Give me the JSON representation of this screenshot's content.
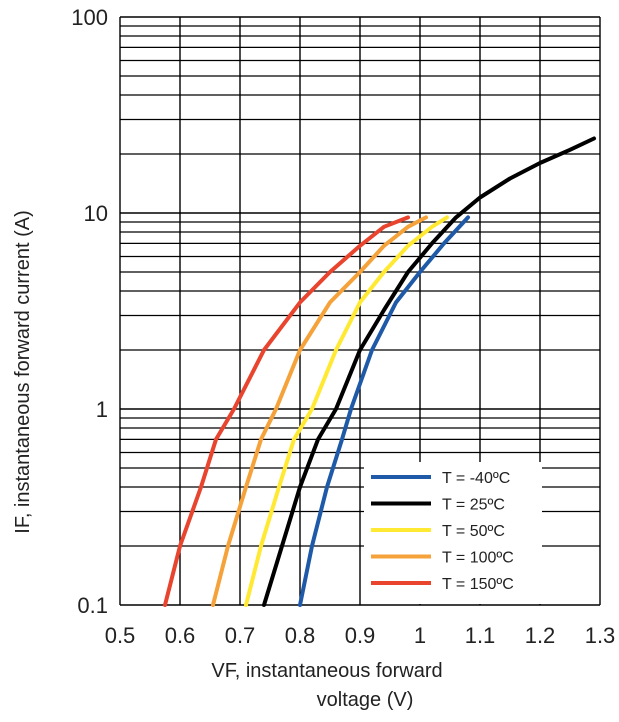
{
  "chart_data": {
    "type": "line",
    "title": "",
    "xlabel_line1": "VF, instantaneous forward",
    "xlabel_line2": "voltage (V)",
    "ylabel": "IF, instantaneous forward current  (A)",
    "xlim": [
      0.5,
      1.3
    ],
    "ylim": [
      0.1,
      100
    ],
    "yscale": "log",
    "grid": true,
    "legend_position": "bottom-right",
    "x_ticks": [
      "0.5",
      "0.6",
      "0.7",
      "0.8",
      "0.9",
      "1",
      "1.1",
      "1.2",
      "1.3"
    ],
    "y_ticks": [
      "0.1",
      "1",
      "10",
      "100"
    ],
    "series": [
      {
        "name": "T = -40ºC",
        "color": "#1f5aa8",
        "x": [
          0.8,
          0.82,
          0.845,
          0.87,
          0.885,
          0.92,
          0.96,
          1.0,
          1.04,
          1.08
        ],
        "y": [
          0.1,
          0.2,
          0.4,
          0.7,
          1.0,
          2.0,
          3.5,
          5.0,
          7.0,
          9.5
        ]
      },
      {
        "name": "T = 25ºC",
        "color": "#000000",
        "x": [
          0.74,
          0.77,
          0.8,
          0.83,
          0.86,
          0.9,
          0.94,
          0.98,
          1.02,
          1.06,
          1.1,
          1.15,
          1.2,
          1.25,
          1.29
        ],
        "y": [
          0.1,
          0.2,
          0.4,
          0.7,
          1.0,
          2.0,
          3.2,
          5.0,
          7.0,
          9.5,
          12.0,
          15.0,
          18.0,
          21.0,
          24.0
        ]
      },
      {
        "name": "T = 50ºC",
        "color": "#ffe933",
        "x": [
          0.71,
          0.735,
          0.765,
          0.79,
          0.82,
          0.86,
          0.9,
          0.94,
          0.98,
          1.02,
          1.045
        ],
        "y": [
          0.1,
          0.2,
          0.4,
          0.7,
          1.0,
          2.0,
          3.5,
          5.0,
          6.8,
          8.5,
          9.5
        ]
      },
      {
        "name": "T = 100ºC",
        "color": "#f5a23a",
        "x": [
          0.655,
          0.68,
          0.71,
          0.735,
          0.76,
          0.8,
          0.85,
          0.9,
          0.94,
          0.98,
          1.01
        ],
        "y": [
          0.1,
          0.2,
          0.4,
          0.7,
          1.0,
          2.0,
          3.5,
          5.0,
          6.8,
          8.5,
          9.5
        ]
      },
      {
        "name": "T = 150ºC",
        "color": "#e8442e",
        "x": [
          0.575,
          0.6,
          0.635,
          0.66,
          0.69,
          0.74,
          0.8,
          0.85,
          0.9,
          0.94,
          0.98
        ],
        "y": [
          0.1,
          0.2,
          0.4,
          0.7,
          1.0,
          2.0,
          3.5,
          5.0,
          6.8,
          8.5,
          9.5
        ]
      }
    ]
  }
}
